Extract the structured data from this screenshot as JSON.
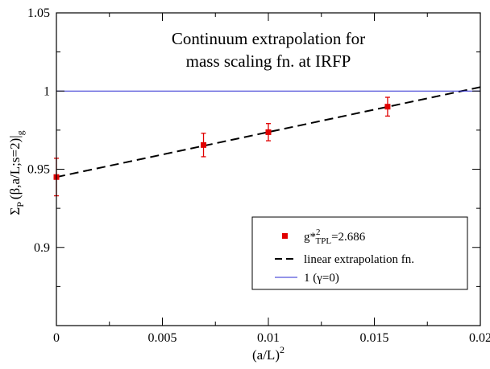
{
  "chart_data": {
    "type": "scatter",
    "title_lines": [
      "Continuum extrapolation for",
      "mass scaling fn. at IRFP"
    ],
    "xlabel": {
      "base": "(a/L)",
      "sup": "2"
    },
    "ylabel": {
      "main": "Σ",
      "sub1": "P",
      "mid": "(β,a/L;s=2)|",
      "sub2": "g"
    },
    "xlim": [
      0,
      0.02
    ],
    "ylim": [
      0.85,
      1.05
    ],
    "xticks": [
      0,
      0.005,
      0.01,
      0.015,
      0.02
    ],
    "xtick_labels": [
      "0",
      "0.005",
      "0.01",
      "0.015",
      "0.02"
    ],
    "yticks": [
      0.9,
      0.95,
      1,
      1.05
    ],
    "ytick_labels": [
      "0.9",
      "0.95",
      "1",
      "1.05"
    ],
    "grid": false,
    "legend_position": "bottom-right",
    "series": [
      {
        "kind": "points_with_error",
        "color": "#e00000",
        "legend": {
          "base": "g*",
          "sup": "2",
          "sub": "TPL",
          "tail": "=2.686"
        },
        "points": [
          {
            "x": 0.0,
            "y": 0.945,
            "err": 0.012
          },
          {
            "x": 0.00694,
            "y": 0.9655,
            "err": 0.0075
          },
          {
            "x": 0.01,
            "y": 0.9737,
            "err": 0.0055
          },
          {
            "x": 0.015625,
            "y": 0.99,
            "err": 0.006
          }
        ]
      },
      {
        "kind": "line",
        "style": "dashed",
        "color": "#000000",
        "legend": "linear extrapolation fn.",
        "x": [
          0,
          0.02
        ],
        "y": [
          0.945,
          1.0025
        ]
      },
      {
        "kind": "line",
        "style": "solid",
        "color": "#2a2ad0",
        "legend": "1 (γ=0)",
        "x": [
          0,
          0.02
        ],
        "y": [
          1,
          1
        ]
      }
    ]
  }
}
